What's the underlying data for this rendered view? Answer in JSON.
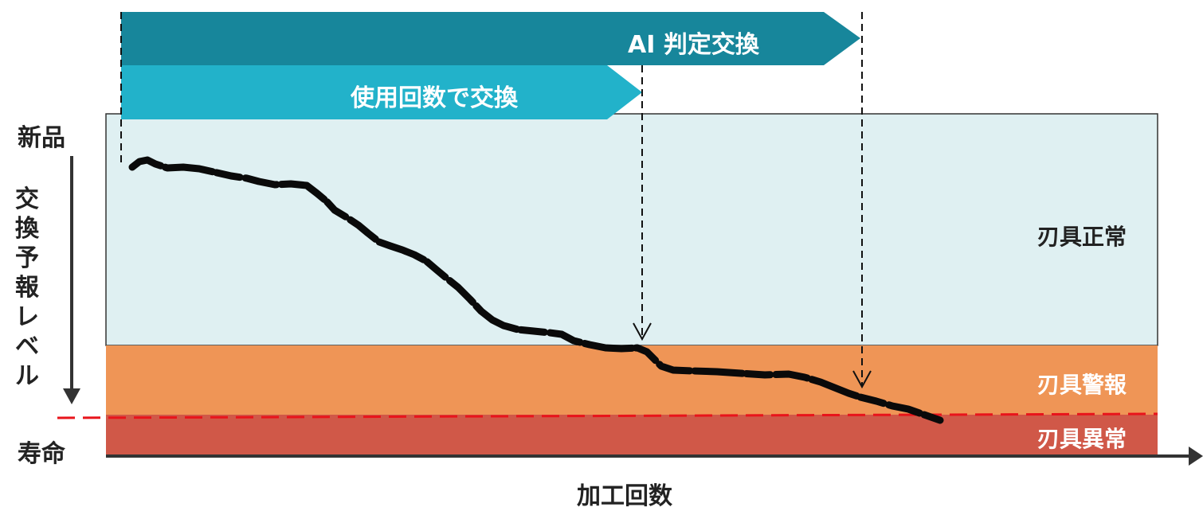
{
  "banners": {
    "ai_replace": "AI 判定交換",
    "count_replace": "使用回数で交換"
  },
  "y_axis": {
    "top_label": "新品",
    "bottom_label": "寿命",
    "title_chars": [
      "交",
      "換",
      "予",
      "報",
      "レ",
      "ベ",
      "ル"
    ]
  },
  "x_axis": {
    "title": "加工回数"
  },
  "zones": {
    "normal": "刃具正常",
    "warning": "刃具警報",
    "abnormal": "刃具異常"
  },
  "colors": {
    "ai_banner": "#17869b",
    "count_banner": "#22b2ca",
    "normal_zone": "#dff0f2",
    "warning_zone": "#ef9556",
    "abnormal_zone": "#d05848",
    "life_line": "#e8141b",
    "curve": "#0a0a0a"
  }
}
